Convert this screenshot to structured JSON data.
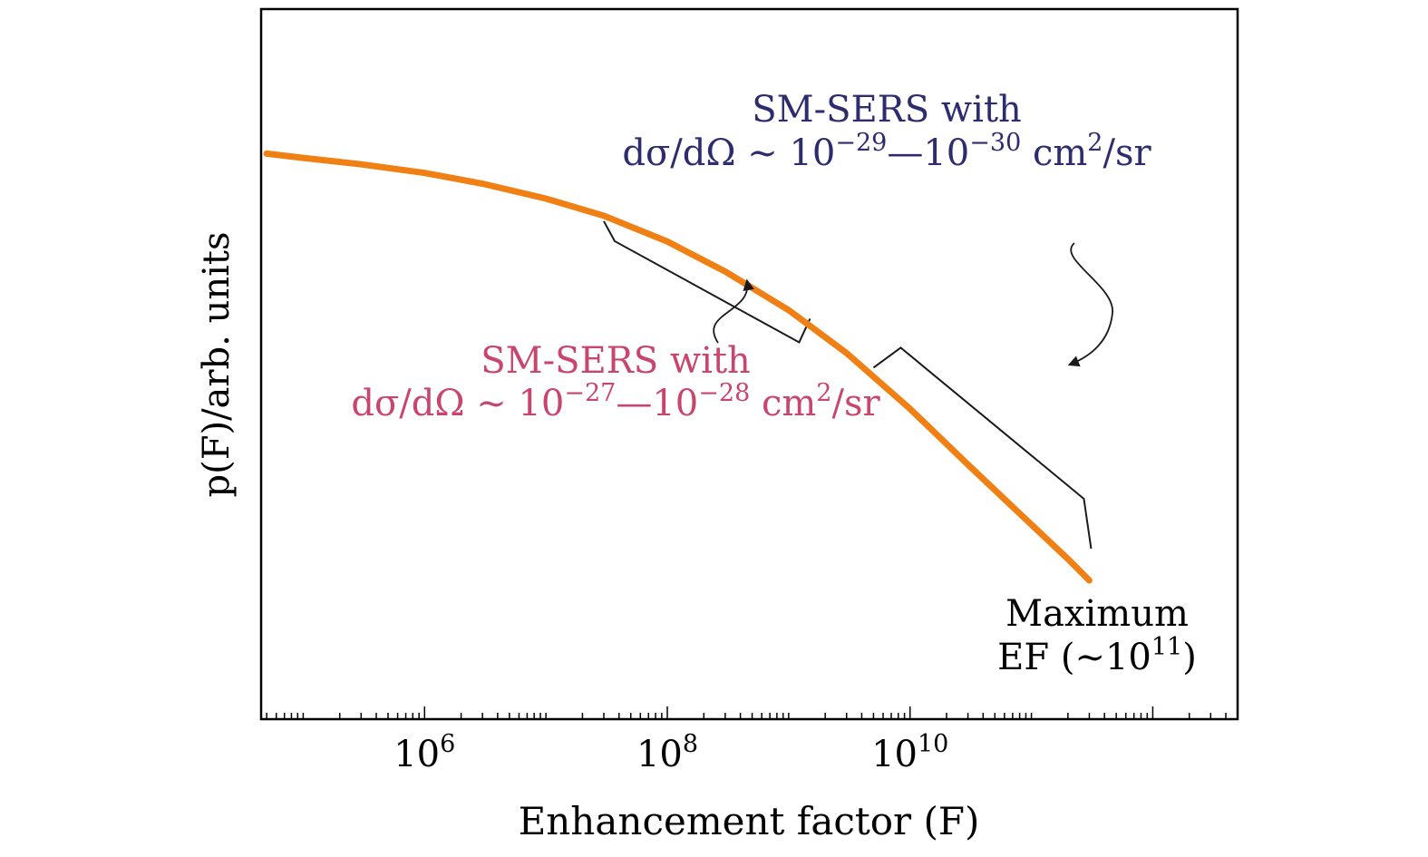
{
  "chart_data": {
    "type": "line",
    "title": "",
    "xlabel": "Enhancement factor (F)",
    "ylabel": "p(F)/arb. units",
    "x_scale": "log",
    "xlim": [
      45000,
      5000000000000
    ],
    "ylim": [
      0,
      1
    ],
    "x_ticks": [
      {
        "value": 1000000,
        "base": "10",
        "exp": "6"
      },
      {
        "value": 100000000,
        "base": "10",
        "exp": "8"
      },
      {
        "value": 10000000000,
        "base": "10",
        "exp": "10"
      }
    ],
    "y_ticks": [],
    "grid": false,
    "legend": "none",
    "colors": {
      "curve": "#f07f14",
      "annotation_blue": "#2c2c6e",
      "annotation_pink": "#c8466e",
      "bracket": "#1a1a1a"
    },
    "series": [
      {
        "points": [
          [
            50000,
            0.995
          ],
          [
            100000,
            0.985
          ],
          [
            300000,
            0.97
          ],
          [
            1000000,
            0.95
          ],
          [
            3000000,
            0.925
          ],
          [
            10000000,
            0.89
          ],
          [
            30000000,
            0.85
          ],
          [
            100000000,
            0.79
          ],
          [
            300000000,
            0.72
          ],
          [
            1000000000,
            0.63
          ],
          [
            3000000000,
            0.53
          ],
          [
            10000000000,
            0.4
          ],
          [
            30000000000,
            0.27
          ],
          [
            100000000000,
            0.13
          ],
          [
            200000000000,
            0.05
          ],
          [
            300000000000,
            0.0
          ]
        ]
      }
    ],
    "annotations": [
      {
        "id": "upper",
        "line1": "SM-SERS with",
        "line2_prefix": "dσ/dΩ ∼ 10",
        "exp_a": "−29",
        "dash": "—10",
        "exp_b": "−30",
        "unit": " cm",
        "unit_exp": "2",
        "unit_suffix": "/sr"
      },
      {
        "id": "lower",
        "line1": "SM-SERS with",
        "line2_prefix": "dσ/dΩ ∼ 10",
        "exp_a": "−27",
        "dash": "—10",
        "exp_b": "−28",
        "unit": " cm",
        "unit_exp": "2",
        "unit_suffix": "/sr"
      },
      {
        "id": "max",
        "line1": "Maximum",
        "line2_prefix": "EF (∼10",
        "exp": "11",
        "line2_suffix": ")"
      }
    ],
    "brackets": [
      {
        "from": 30000000,
        "to": 1500000000
      },
      {
        "from": 5000000000,
        "to": 300000000000
      }
    ]
  }
}
